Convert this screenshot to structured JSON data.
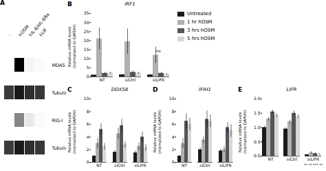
{
  "chart_data": [
    {
      "type": "heatmap",
      "x": [
        "-",
        "hOSM",
        "hIL-6/sIL-6Ra",
        "hLIF"
      ],
      "y": [
        "MDA5",
        "Tubulin",
        "RIG-I",
        "Tubulin"
      ],
      "cells": [
        [
          0.05,
          0.85,
          0.12,
          0.08
        ],
        [
          0.7,
          0.78,
          0.73,
          0.71
        ],
        [
          0.05,
          0.5,
          0.18,
          0.08
        ],
        [
          0.7,
          0.78,
          0.73,
          0.71
        ]
      ],
      "annotations": [
        {
          "text": "A"
        }
      ]
    },
    {
      "type": "bar",
      "title": "IRF1",
      "categories": [
        "NT",
        "siCtrl",
        "siLIFR"
      ],
      "series": [
        {
          "name": "Untreated",
          "color": "#1a1a1a",
          "values": [
            1.0,
            1.2,
            1.1
          ],
          "errors": [
            0.1,
            0.2,
            0.2
          ]
        },
        {
          "name": "1 hr hOSM",
          "color": "#b0b0b0",
          "values": [
            21.0,
            19.5,
            12.0
          ],
          "errors": [
            6.0,
            7.0,
            4.5
          ]
        },
        {
          "name": "3 hrs hOSM",
          "color": "#555555",
          "values": [
            2.0,
            2.5,
            2.0
          ],
          "errors": [
            0.5,
            0.8,
            0.5
          ]
        },
        {
          "name": "5 hrs hOSM",
          "color": "#d8d8d8",
          "values": [
            2.2,
            2.2,
            1.5
          ],
          "errors": [
            0.5,
            0.5,
            0.4
          ]
        }
      ],
      "ylim": [
        0,
        35
      ],
      "yticks": [
        0,
        5,
        10,
        15,
        20,
        25,
        30,
        35
      ],
      "ylabel": "Relative mRNA levels\n(normalized to GAPDH)",
      "legend": "right",
      "annotations": [
        {
          "text": "B"
        },
        {
          "text": "ns",
          "category": "siLIFR",
          "y": 13.5
        }
      ]
    },
    {
      "type": "bar",
      "title": "DDX58",
      "categories": [
        "NT",
        "siCtrl",
        "siLIFR"
      ],
      "series": [
        {
          "name": "Untreated",
          "color": "#1a1a1a",
          "values": [
            1.0,
            1.6,
            1.5
          ],
          "errors": [
            0.1,
            0.3,
            0.3
          ]
        },
        {
          "name": "1 hr hOSM",
          "color": "#b0b0b0",
          "values": [
            3.0,
            4.5,
            2.5
          ],
          "errors": [
            0.8,
            0.9,
            0.6
          ]
        },
        {
          "name": "3 hrs hOSM",
          "color": "#555555",
          "values": [
            5.2,
            5.8,
            4.0
          ],
          "errors": [
            0.9,
            1.0,
            0.8
          ]
        },
        {
          "name": "5 hrs hOSM",
          "color": "#d8d8d8",
          "values": [
            2.5,
            2.8,
            2.3
          ],
          "errors": [
            0.5,
            0.5,
            0.5
          ]
        }
      ],
      "ylim": [
        0,
        10
      ],
      "yticks": [
        0,
        2,
        4,
        6,
        8,
        10
      ],
      "ylabel": "Relative mRNA levels\n(normalized to GAPDH)",
      "annotations": [
        {
          "text": "C"
        }
      ]
    },
    {
      "type": "bar",
      "title": "IFIH1",
      "categories": [
        "NT",
        "siCtrl",
        "siLIFR"
      ],
      "series": [
        {
          "name": "Untreated",
          "color": "#1a1a1a",
          "values": [
            1.0,
            2.0,
            1.8
          ],
          "errors": [
            0.1,
            0.3,
            0.3
          ]
        },
        {
          "name": "1 hr hOSM",
          "color": "#b0b0b0",
          "values": [
            3.0,
            3.5,
            2.0
          ],
          "errors": [
            0.8,
            0.5,
            0.5
          ]
        },
        {
          "name": "3 hrs hOSM",
          "color": "#555555",
          "values": [
            6.5,
            6.8,
            5.5
          ],
          "errors": [
            1.2,
            1.3,
            0.8
          ]
        },
        {
          "name": "5 hrs hOSM",
          "color": "#d8d8d8",
          "values": [
            6.0,
            6.5,
            5.0
          ],
          "errors": [
            1.0,
            1.0,
            1.0
          ]
        }
      ],
      "ylim": [
        0,
        10
      ],
      "yticks": [
        0,
        2,
        4,
        6,
        8,
        10
      ],
      "ylabel": "Relative mRNA levels\n(normalized to GAPDH)",
      "annotations": [
        {
          "text": "D"
        }
      ]
    },
    {
      "type": "bar",
      "title": "LIFR",
      "categories": [
        "NT",
        "siCtrl",
        "siLIFR"
      ],
      "series": [
        {
          "name": "Untreated",
          "color": "#1a1a1a",
          "values": [
            1.0,
            0.95,
            0.05
          ],
          "errors": [
            0.05,
            0.05,
            0.02
          ]
        },
        {
          "name": "1 hr hOSM",
          "color": "#b0b0b0",
          "values": [
            1.3,
            1.2,
            0.12
          ],
          "errors": [
            0.06,
            0.06,
            0.04
          ]
        },
        {
          "name": "3 hrs hOSM",
          "color": "#555555",
          "values": [
            1.55,
            1.5,
            0.09
          ],
          "errors": [
            0.06,
            0.08,
            0.03
          ]
        },
        {
          "name": "5 hrs hOSM",
          "color": "#d8d8d8",
          "values": [
            1.42,
            1.38,
            0.07
          ],
          "errors": [
            0.06,
            0.06,
            0.02
          ]
        }
      ],
      "ylim": [
        0,
        2.0
      ],
      "yticks": [
        {
          "value": 0,
          "label": "0.0"
        },
        0.5,
        {
          "value": 1,
          "label": "1.0"
        },
        1.5,
        {
          "value": 2,
          "label": "2.0"
        }
      ],
      "ylabel": "Relative mRNA levels\n(normalized to GAPDH)",
      "annotations": [
        {
          "text": "E"
        },
        {
          "text": "** ** *** **",
          "category": "siLIFR"
        }
      ]
    }
  ]
}
